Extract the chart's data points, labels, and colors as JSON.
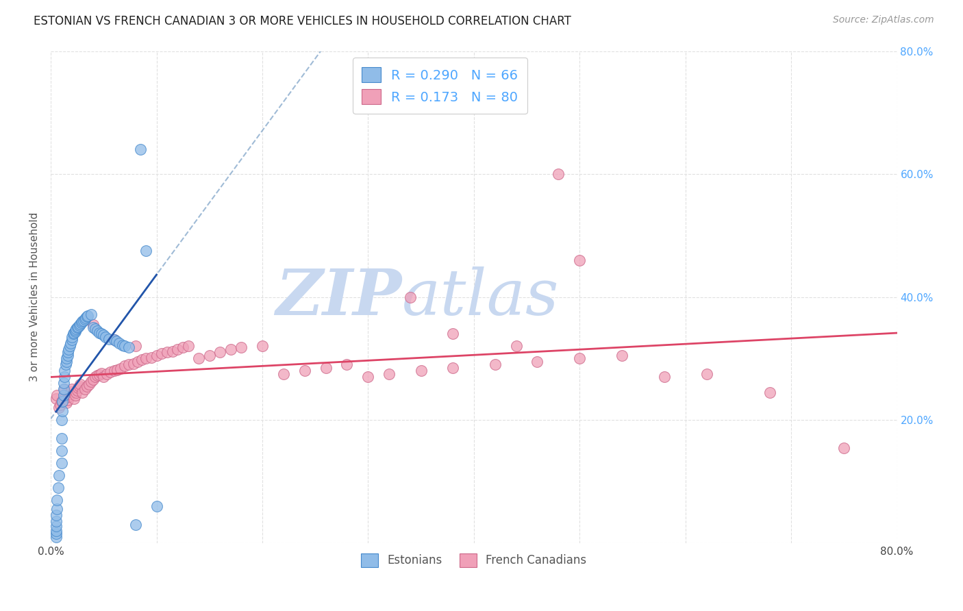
{
  "title": "ESTONIAN VS FRENCH CANADIAN 3 OR MORE VEHICLES IN HOUSEHOLD CORRELATION CHART",
  "source": "Source: ZipAtlas.com",
  "ylabel": "3 or more Vehicles in Household",
  "xmin": 0.0,
  "xmax": 0.8,
  "ymin": 0.0,
  "ymax": 0.8,
  "yticks": [
    0.0,
    0.2,
    0.4,
    0.6,
    0.8
  ],
  "ytick_labels": [
    "",
    "20.0%",
    "40.0%",
    "60.0%",
    "80.0%"
  ],
  "xtick_labels": [
    "0.0%",
    "",
    "",
    "",
    "",
    "",
    "",
    "",
    "80.0%"
  ],
  "legend_entries": [
    {
      "label": "Estonians",
      "color": "#aec6f0",
      "R": "0.290",
      "N": "66"
    },
    {
      "label": "French Canadians",
      "color": "#f5a0b0",
      "R": "0.173",
      "N": "80"
    }
  ],
  "watermark_zip": "ZIP",
  "watermark_atlas": "atlas",
  "watermark_color": "#c8d8f0",
  "background_color": "#ffffff",
  "grid_color": "#e0e0e0",
  "title_color": "#222222",
  "axis_label_color": "#555555",
  "tick_label_color_right": "#4da6ff",
  "scatter_estonian_color": "#90bce8",
  "scatter_estonian_edge": "#4488cc",
  "scatter_french_color": "#f0a0b8",
  "scatter_french_edge": "#cc6688",
  "trendline_estonian_dashed_color": "#88aacc",
  "trendline_estonian_solid_color": "#2255aa",
  "trendline_french_color": "#dd4466",
  "legend_text_color": "#4da6ff",
  "estonian_x": [
    0.005,
    0.005,
    0.005,
    0.005,
    0.005,
    0.005,
    0.006,
    0.006,
    0.007,
    0.008,
    0.01,
    0.01,
    0.01,
    0.01,
    0.011,
    0.011,
    0.012,
    0.012,
    0.012,
    0.013,
    0.013,
    0.014,
    0.015,
    0.015,
    0.016,
    0.016,
    0.017,
    0.018,
    0.019,
    0.02,
    0.02,
    0.021,
    0.022,
    0.023,
    0.023,
    0.024,
    0.025,
    0.026,
    0.027,
    0.028,
    0.029,
    0.03,
    0.031,
    0.032,
    0.033,
    0.034,
    0.035,
    0.038,
    0.04,
    0.042,
    0.044,
    0.046,
    0.048,
    0.05,
    0.052,
    0.055,
    0.06,
    0.062,
    0.065,
    0.068,
    0.07,
    0.074,
    0.08,
    0.085,
    0.09,
    0.1
  ],
  "estonian_y": [
    0.01,
    0.015,
    0.02,
    0.028,
    0.035,
    0.045,
    0.055,
    0.07,
    0.09,
    0.11,
    0.13,
    0.15,
    0.17,
    0.2,
    0.215,
    0.23,
    0.24,
    0.25,
    0.26,
    0.27,
    0.28,
    0.29,
    0.295,
    0.3,
    0.305,
    0.31,
    0.315,
    0.32,
    0.325,
    0.33,
    0.335,
    0.34,
    0.342,
    0.344,
    0.346,
    0.348,
    0.35,
    0.352,
    0.354,
    0.356,
    0.358,
    0.36,
    0.362,
    0.364,
    0.366,
    0.368,
    0.37,
    0.372,
    0.35,
    0.348,
    0.345,
    0.342,
    0.34,
    0.338,
    0.335,
    0.332,
    0.33,
    0.328,
    0.325,
    0.322,
    0.32,
    0.318,
    0.03,
    0.64,
    0.475,
    0.06
  ],
  "french_x": [
    0.005,
    0.006,
    0.008,
    0.009,
    0.01,
    0.012,
    0.013,
    0.015,
    0.016,
    0.017,
    0.018,
    0.019,
    0.02,
    0.022,
    0.023,
    0.024,
    0.025,
    0.026,
    0.027,
    0.028,
    0.03,
    0.032,
    0.034,
    0.036,
    0.038,
    0.04,
    0.042,
    0.044,
    0.046,
    0.048,
    0.05,
    0.053,
    0.056,
    0.06,
    0.063,
    0.066,
    0.07,
    0.074,
    0.078,
    0.082,
    0.086,
    0.09,
    0.095,
    0.1,
    0.105,
    0.11,
    0.115,
    0.12,
    0.125,
    0.13,
    0.14,
    0.15,
    0.16,
    0.17,
    0.18,
    0.2,
    0.22,
    0.24,
    0.26,
    0.28,
    0.3,
    0.32,
    0.35,
    0.38,
    0.42,
    0.46,
    0.5,
    0.54,
    0.58,
    0.62,
    0.04,
    0.06,
    0.08,
    0.34,
    0.38,
    0.44,
    0.48,
    0.5,
    0.68,
    0.75
  ],
  "french_y": [
    0.235,
    0.24,
    0.22,
    0.225,
    0.23,
    0.235,
    0.25,
    0.228,
    0.232,
    0.238,
    0.242,
    0.246,
    0.25,
    0.235,
    0.24,
    0.245,
    0.248,
    0.252,
    0.255,
    0.258,
    0.245,
    0.25,
    0.255,
    0.258,
    0.262,
    0.266,
    0.27,
    0.272,
    0.274,
    0.276,
    0.27,
    0.275,
    0.278,
    0.28,
    0.282,
    0.284,
    0.288,
    0.29,
    0.292,
    0.295,
    0.298,
    0.3,
    0.302,
    0.305,
    0.308,
    0.31,
    0.312,
    0.315,
    0.318,
    0.32,
    0.3,
    0.305,
    0.31,
    0.315,
    0.318,
    0.32,
    0.275,
    0.28,
    0.285,
    0.29,
    0.27,
    0.275,
    0.28,
    0.285,
    0.29,
    0.295,
    0.3,
    0.305,
    0.27,
    0.275,
    0.355,
    0.33,
    0.32,
    0.4,
    0.34,
    0.32,
    0.6,
    0.46,
    0.245,
    0.155
  ]
}
